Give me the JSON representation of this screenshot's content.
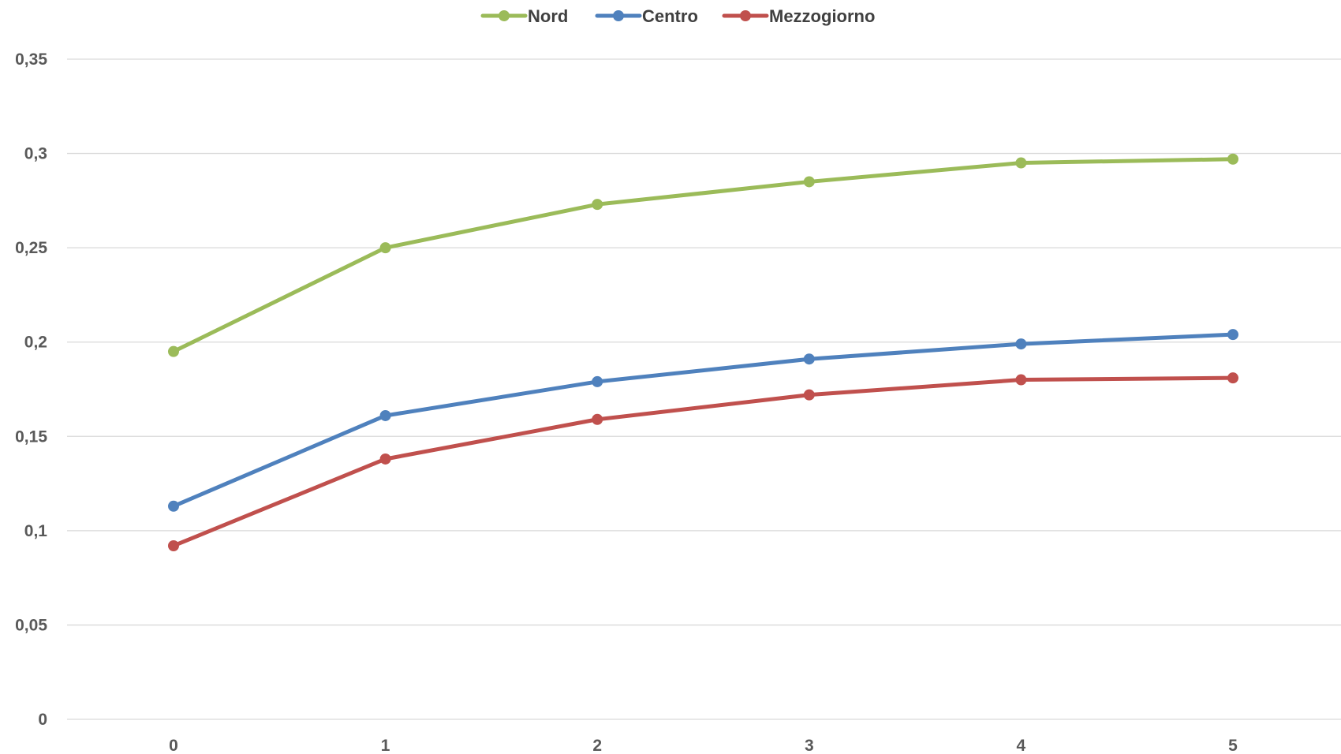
{
  "chart_data": {
    "type": "line",
    "title": "",
    "xlabel": "",
    "ylabel": "",
    "x": [
      0,
      1,
      2,
      3,
      4,
      5
    ],
    "x_tick_labels": [
      "0",
      "1",
      "2",
      "3",
      "4",
      "5"
    ],
    "ylim": [
      0,
      0.35
    ],
    "y_ticks": [
      0,
      0.05,
      0.1,
      0.15,
      0.2,
      0.25,
      0.3,
      0.35
    ],
    "y_tick_labels": [
      "0",
      "0,05",
      "0,1",
      "0,15",
      "0,2",
      "0,25",
      "0,3",
      "0,35"
    ],
    "grid": true,
    "legend_position": "top-center",
    "series": [
      {
        "name": "Nord",
        "color": "#9BBB59",
        "values": [
          0.195,
          0.25,
          0.273,
          0.285,
          0.295,
          0.297
        ]
      },
      {
        "name": "Centro",
        "color": "#4F81BD",
        "values": [
          0.113,
          0.161,
          0.179,
          0.191,
          0.199,
          0.204
        ]
      },
      {
        "name": "Mezzogiorno",
        "color": "#C0504D",
        "values": [
          0.092,
          0.138,
          0.159,
          0.172,
          0.18,
          0.181
        ]
      }
    ]
  }
}
